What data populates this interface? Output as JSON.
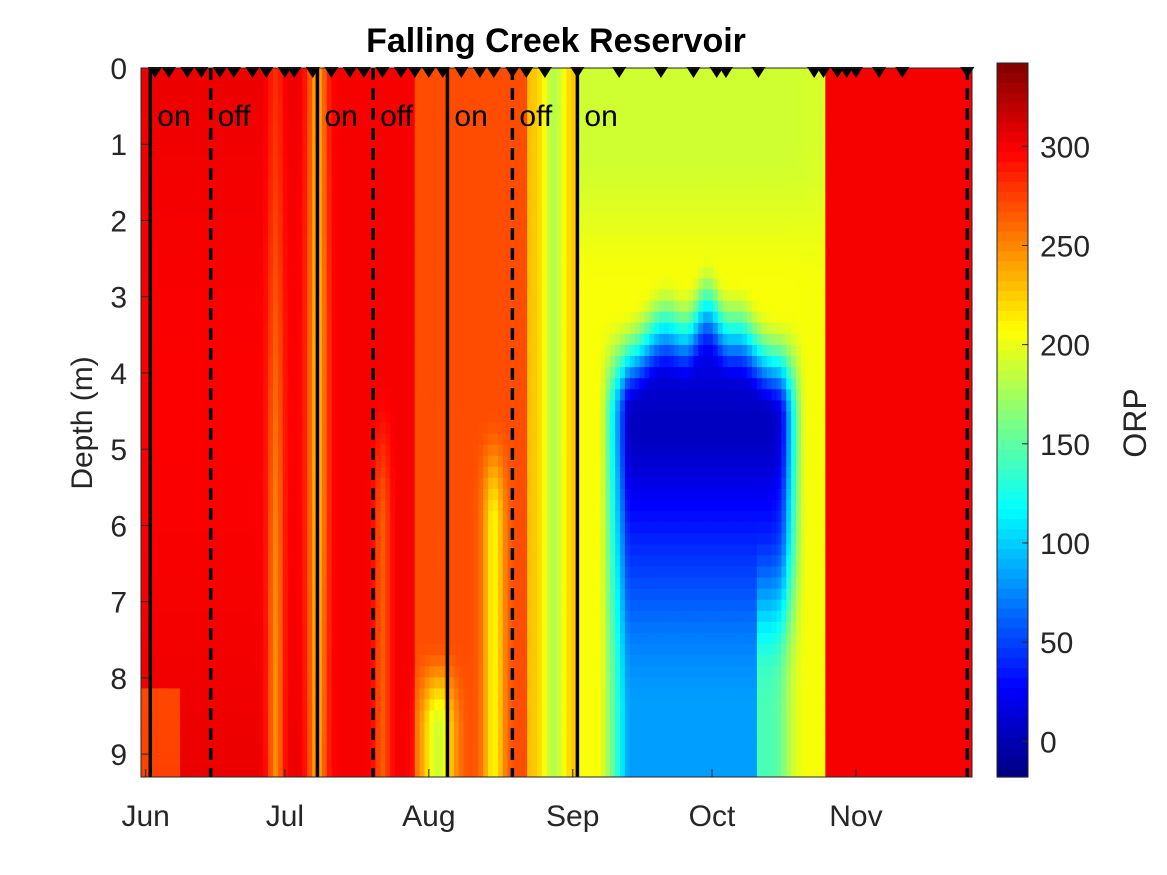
{
  "chart_data": {
    "type": "heatmap",
    "title": "Falling Creek Reservoir",
    "xlabel": "",
    "ylabel": "Depth (m)",
    "colorbar_label": "ORP",
    "colormap": "jet",
    "x_ticks": [
      {
        "label": "Jun",
        "date": "2019-06-01"
      },
      {
        "label": "Jul",
        "date": "2019-07-01"
      },
      {
        "label": "Aug",
        "date": "2019-08-01"
      },
      {
        "label": "Sep",
        "date": "2019-09-01"
      },
      {
        "label": "Oct",
        "date": "2019-10-01"
      },
      {
        "label": "Nov",
        "date": "2019-11-01"
      }
    ],
    "xlim": [
      "2019-05-31",
      "2019-11-26"
    ],
    "ylim": [
      0,
      9.3
    ],
    "y_reversed": true,
    "y_ticks": [
      0,
      1,
      2,
      3,
      4,
      5,
      6,
      7,
      8,
      9
    ],
    "clim": [
      -18,
      342
    ],
    "colorbar_ticks": [
      0,
      50,
      100,
      150,
      200,
      250,
      300
    ],
    "sample_dates": [
      "2019-06-03",
      "2019-06-06",
      "2019-06-10",
      "2019-06-13",
      "2019-06-17",
      "2019-06-20",
      "2019-06-24",
      "2019-06-27",
      "2019-07-01",
      "2019-07-03",
      "2019-07-07",
      "2019-07-11",
      "2019-07-15",
      "2019-07-18",
      "2019-07-22",
      "2019-07-26",
      "2019-07-29",
      "2019-08-01",
      "2019-08-04",
      "2019-08-08",
      "2019-08-12",
      "2019-08-15",
      "2019-08-19",
      "2019-08-22",
      "2019-08-26",
      "2019-09-02",
      "2019-09-11",
      "2019-09-20",
      "2019-09-27",
      "2019-10-02",
      "2019-10-04",
      "2019-10-11",
      "2019-10-23",
      "2019-10-25",
      "2019-10-28",
      "2019-10-30",
      "2019-11-01",
      "2019-11-06",
      "2019-11-11",
      "2019-11-25"
    ],
    "events": [
      {
        "date": "2019-06-02",
        "label": "on",
        "style": "solid"
      },
      {
        "date": "2019-06-15",
        "label": "off",
        "style": "dashed"
      },
      {
        "date": "2019-07-08",
        "label": "on",
        "style": "solid"
      },
      {
        "date": "2019-07-20",
        "label": "off",
        "style": "dashed"
      },
      {
        "date": "2019-08-05",
        "label": "on",
        "style": "solid"
      },
      {
        "date": "2019-08-19",
        "label": "off",
        "style": "dashed"
      },
      {
        "date": "2019-09-02",
        "label": "on",
        "style": "solid"
      },
      {
        "date": "2019-11-25",
        "label": "",
        "style": "dashed"
      }
    ],
    "grid": false
  }
}
